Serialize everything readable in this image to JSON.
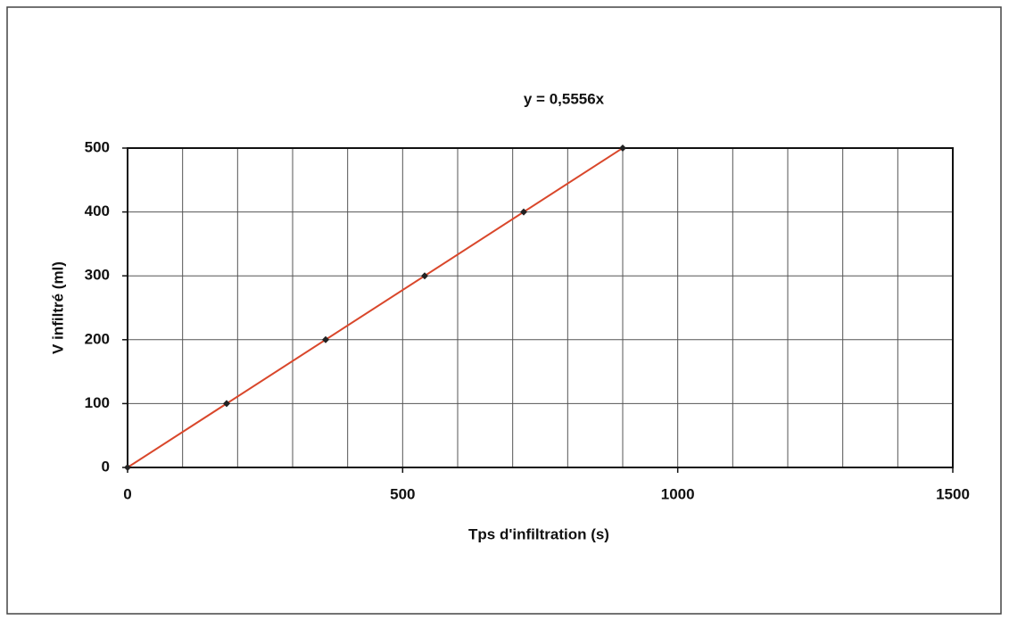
{
  "chart_data": {
    "type": "scatter",
    "annotation": "y = 0,5556x",
    "xlabel": "Tps d'infiltration (s)",
    "ylabel": "V infiltré (ml)",
    "series": [
      {
        "color": "#222222",
        "x": [
          0,
          180,
          360,
          540,
          720,
          900
        ],
        "values": [
          0,
          100,
          200,
          300,
          400,
          500
        ]
      }
    ],
    "trendline": {
      "slope": 0.5556,
      "color": "#d9472b"
    },
    "xlim": [
      0,
      1500
    ],
    "xticks": [
      0,
      500,
      1000,
      1500
    ],
    "xminorticks": [
      100,
      200,
      300,
      400,
      600,
      700,
      800,
      900,
      1100,
      1200,
      1300,
      1400
    ],
    "ylim": [
      0,
      500
    ],
    "yticks": [
      0,
      100,
      200,
      300,
      400,
      500
    ],
    "grid": true
  }
}
